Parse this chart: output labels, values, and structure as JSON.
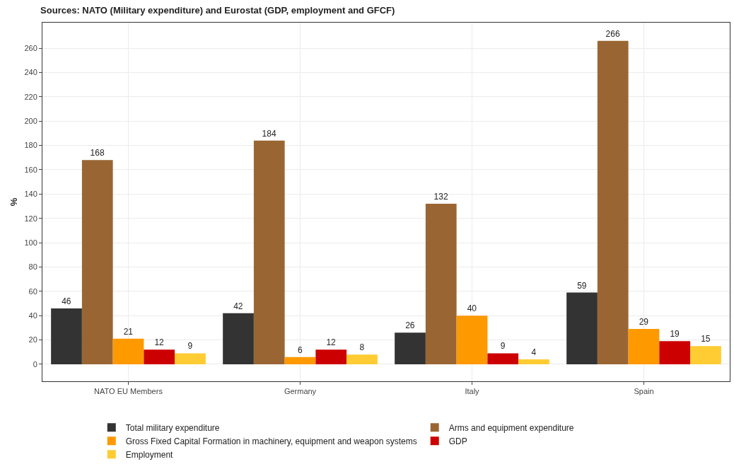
{
  "chart_data": {
    "type": "bar",
    "title": "Sources: NATO (Military expenditure) and Eurostat (GDP, employment and GFCF)",
    "ylabel": "%",
    "categories": [
      "NATO EU Members",
      "Germany",
      "Italy",
      "Spain"
    ],
    "series": [
      {
        "name": "Total military expenditure",
        "color": "#333333",
        "values": [
          46,
          42,
          26,
          59
        ]
      },
      {
        "name": "Arms and equipment expenditure",
        "color": "#996633",
        "values": [
          168,
          184,
          132,
          266
        ]
      },
      {
        "name": "Gross Fixed Capital Formation in machinery, equipment and weapon systems",
        "color": "#ff9900",
        "values": [
          21,
          6,
          40,
          29
        ]
      },
      {
        "name": "GDP",
        "color": "#cc0000",
        "values": [
          12,
          12,
          9,
          19
        ]
      },
      {
        "name": "Employment",
        "color": "#ffcc33",
        "values": [
          9,
          8,
          4,
          15
        ]
      }
    ],
    "ylim": [
      -14,
      281
    ],
    "yticks": [
      0,
      20,
      40,
      60,
      80,
      100,
      120,
      140,
      160,
      180,
      200,
      220,
      240,
      260
    ],
    "grid": true,
    "legend": "bottom",
    "data_labels": true
  }
}
